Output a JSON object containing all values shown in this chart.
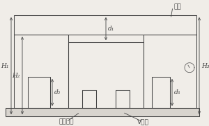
{
  "bg_color": "#f0ede8",
  "line_color": "#444444",
  "labels": {
    "H1": "H₁",
    "H2": "H₂",
    "H3": "H₃",
    "d1": "d₁",
    "d2": "d₂",
    "d3": "d₃",
    "gongzuo": "工作平台",
    "vxingjia": "V形架",
    "quxhou": "曲轴"
  },
  "font_size": 6.5
}
